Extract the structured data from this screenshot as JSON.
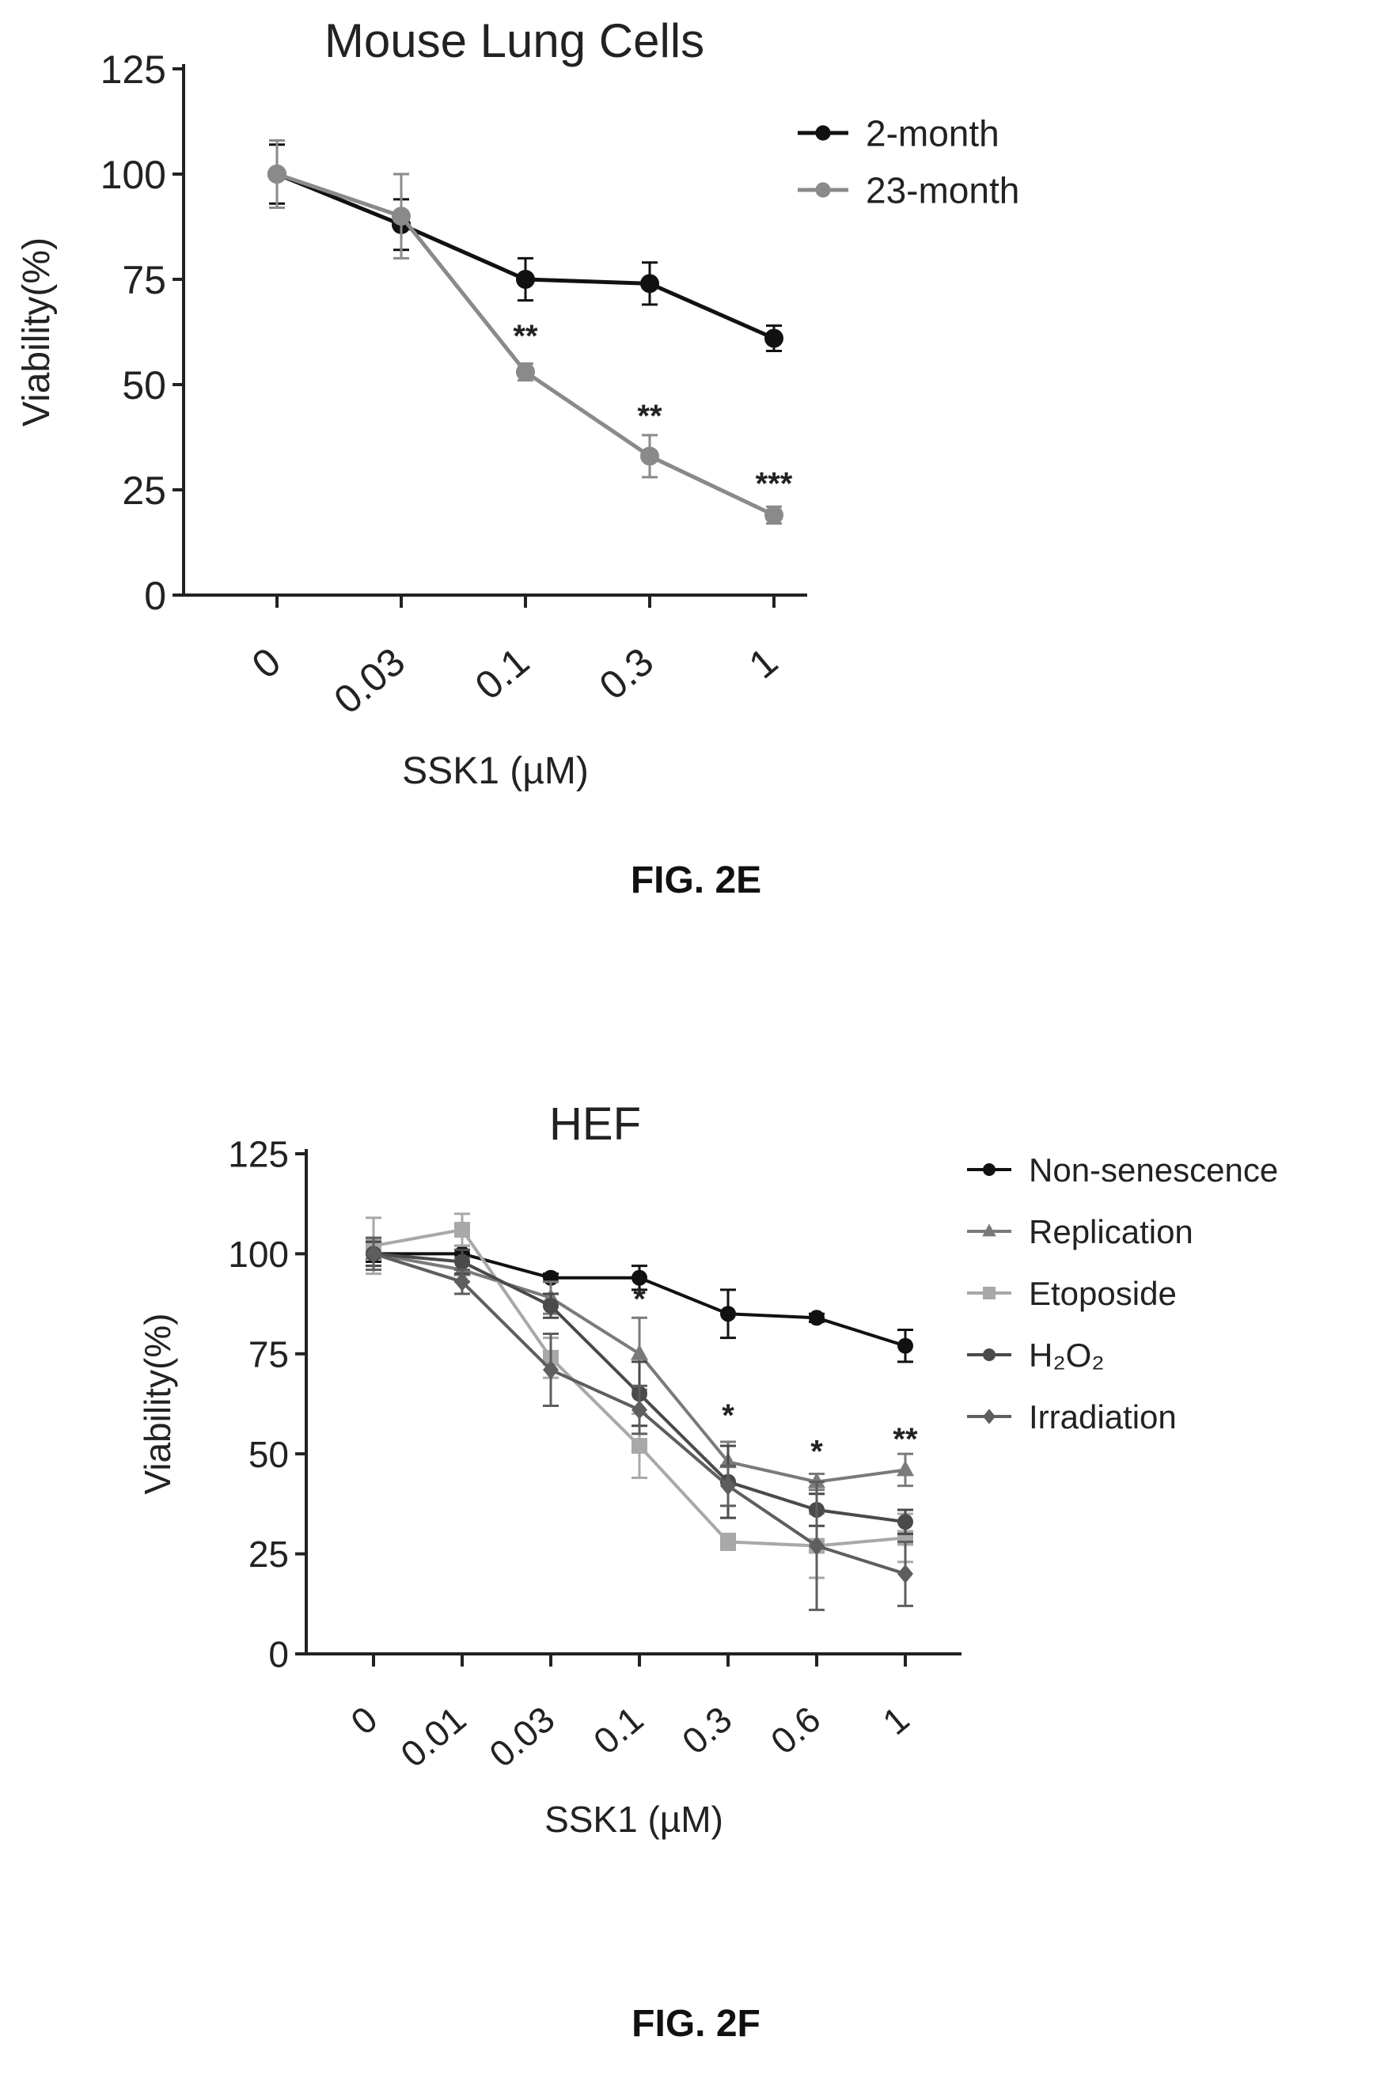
{
  "chart_data": [
    {
      "type": "line",
      "title": "Mouse Lung Cells",
      "xlabel": "SSK1 (µM)",
      "ylabel": "Viability(%)",
      "ylim": [
        0,
        125
      ],
      "yticks": [
        "0",
        "25",
        "50",
        "75",
        "100",
        "125"
      ],
      "categories": [
        "0",
        "0.03",
        "0.1",
        "0.3",
        "1"
      ],
      "legend_position": "top-right",
      "series": [
        {
          "name": "2-month",
          "color": "#111111",
          "marker": "circle",
          "values": [
            100,
            88,
            75,
            74,
            61
          ],
          "errors": [
            7,
            6,
            5,
            5,
            3
          ]
        },
        {
          "name": "23-month",
          "color": "#8a8a8a",
          "marker": "circle",
          "values": [
            100,
            90,
            53,
            33,
            19
          ],
          "errors": [
            8,
            10,
            2,
            5,
            2
          ]
        }
      ],
      "annotations": [
        {
          "category": "0.1",
          "text": "**",
          "y": 59
        },
        {
          "category": "0.3",
          "text": "**",
          "y": 40
        },
        {
          "category": "1",
          "text": "***",
          "y": 24
        }
      ]
    },
    {
      "type": "line",
      "title": "HEF",
      "xlabel": "SSK1 (µM)",
      "ylabel": "Viability(%)",
      "ylim": [
        0,
        125
      ],
      "yticks": [
        "0",
        "25",
        "50",
        "75",
        "100",
        "125"
      ],
      "categories": [
        "0",
        "0.01",
        "0.03",
        "0.1",
        "0.3",
        "0.6",
        "1"
      ],
      "legend_position": "top-right",
      "series": [
        {
          "name": "Non-senescence",
          "color": "#111111",
          "marker": "circle",
          "values": [
            100,
            100,
            94,
            94,
            85,
            84,
            77
          ],
          "errors": [
            2,
            2,
            1,
            3,
            6,
            1,
            4
          ]
        },
        {
          "name": "Replication",
          "color": "#7a7a7a",
          "marker": "triangle",
          "values": [
            100,
            96,
            89,
            75,
            48,
            43,
            46
          ],
          "errors": [
            3,
            3,
            4,
            9,
            5,
            2,
            4
          ]
        },
        {
          "name": "Etoposide",
          "color": "#a8a8a8",
          "marker": "square",
          "values": [
            102,
            106,
            74,
            52,
            28,
            27,
            29
          ],
          "errors": [
            7,
            4,
            5,
            8,
            2,
            8,
            6
          ]
        },
        {
          "name": "H₂O₂",
          "color": "#4a4a4a",
          "marker": "circle",
          "values": [
            100,
            98,
            87,
            65,
            43,
            36,
            33
          ],
          "errors": [
            3,
            3,
            3,
            8,
            9,
            4,
            3
          ]
        },
        {
          "name": "Irradiation",
          "color": "#5e5e5e",
          "marker": "diamond",
          "values": [
            100,
            93,
            71,
            61,
            42,
            27,
            20
          ],
          "errors": [
            4,
            3,
            9,
            6,
            5,
            16,
            8
          ]
        }
      ],
      "annotations": [
        {
          "category": "0.1",
          "text": "*",
          "y": 86
        },
        {
          "category": "0.3",
          "text": "*",
          "y": 57
        },
        {
          "category": "0.6",
          "text": "*",
          "y": 48
        },
        {
          "category": "1",
          "text": "**",
          "y": 51
        }
      ]
    }
  ],
  "captions": {
    "fig_e": "FIG. 2E",
    "fig_f": "FIG. 2F"
  }
}
